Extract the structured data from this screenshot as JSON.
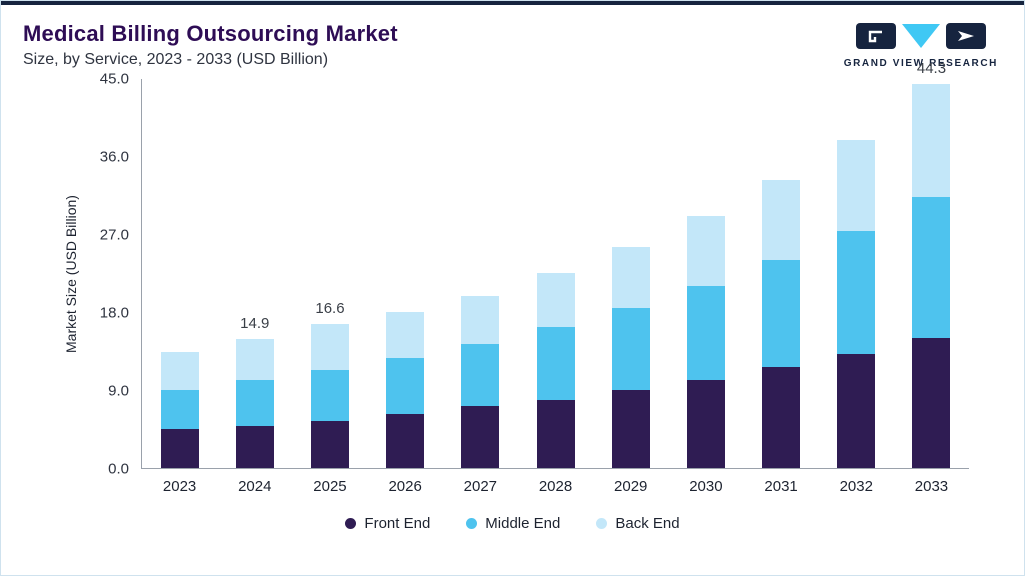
{
  "header": {
    "title": "Medical Billing Outsourcing Market",
    "subtitle": "Size, by Service, 2023 - 2033 (USD Billion)",
    "logo_text": "GRAND VIEW RESEARCH"
  },
  "colors": {
    "front_end": "#2f1c53",
    "middle_end": "#4ec3ee",
    "back_end": "#c3e7f9",
    "navy": "#16243f",
    "logo_cyan": "#3fc8f4",
    "title_purple": "#2e0d55"
  },
  "chart_data": {
    "type": "bar",
    "stacked": true,
    "title": "Medical Billing Outsourcing Market Size, by Service, 2023 - 2033 (USD Billion)",
    "xlabel": "",
    "ylabel": "Market Size (USD Billion)",
    "ylim": [
      0,
      45
    ],
    "yticks": [
      "0.0",
      "9.0",
      "18.0",
      "27.0",
      "36.0",
      "45.0"
    ],
    "grid": false,
    "legend_position": "bottom",
    "categories": [
      "2023",
      "2024",
      "2025",
      "2026",
      "2027",
      "2028",
      "2029",
      "2030",
      "2031",
      "2032",
      "2033"
    ],
    "series": [
      {
        "name": "Front End",
        "color": "#2f1c53",
        "values": [
          4.5,
          4.9,
          5.4,
          6.2,
          7.1,
          7.9,
          9.0,
          10.2,
          11.6,
          13.2,
          15.0
        ]
      },
      {
        "name": "Middle End",
        "color": "#4ec3ee",
        "values": [
          4.5,
          5.2,
          5.9,
          6.5,
          7.2,
          8.4,
          9.5,
          10.8,
          12.4,
          14.2,
          16.3
        ]
      },
      {
        "name": "Back End",
        "color": "#c3e7f9",
        "values": [
          4.4,
          4.8,
          5.3,
          5.3,
          5.6,
          6.2,
          7.0,
          8.1,
          9.2,
          10.4,
          13.0
        ]
      }
    ],
    "bar_labels": [
      "",
      "14.9",
      "16.6",
      "",
      "",
      "",
      "",
      "",
      "",
      "",
      "44.3"
    ]
  },
  "legend": {
    "items": [
      {
        "label": "Front End",
        "color": "#2f1c53"
      },
      {
        "label": "Middle End",
        "color": "#4ec3ee"
      },
      {
        "label": "Back End",
        "color": "#c3e7f9"
      }
    ]
  }
}
